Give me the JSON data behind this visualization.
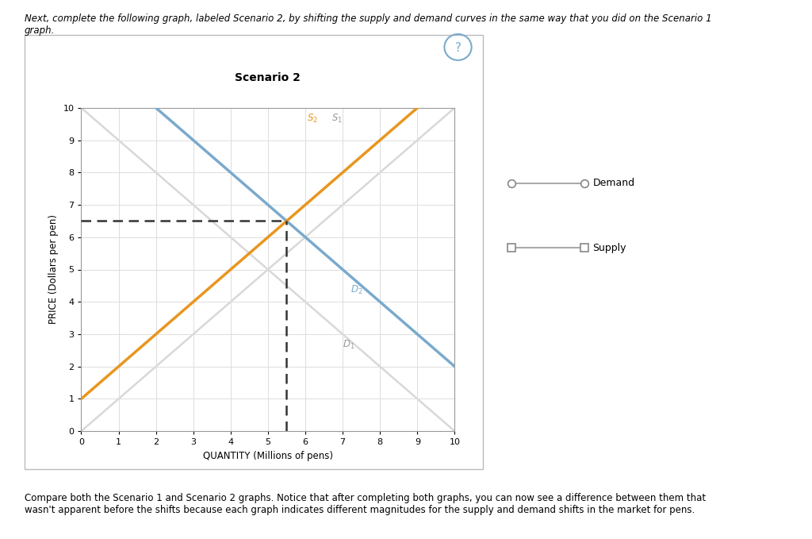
{
  "title": "Scenario 2",
  "xlabel": "QUANTITY (Millions of pens)",
  "ylabel": "PRICE (Dollars per pen)",
  "xlim": [
    0,
    10
  ],
  "ylim": [
    0,
    10
  ],
  "xticks": [
    0,
    1,
    2,
    3,
    4,
    5,
    6,
    7,
    8,
    9,
    10
  ],
  "yticks": [
    0,
    1,
    2,
    3,
    4,
    5,
    6,
    7,
    8,
    9,
    10
  ],
  "header_text": "Next, complete the following graph, labeled Scenario 2, by shifting the supply and demand curves in the same way that you did on the Scenario 1\ngraph.",
  "footer_text": "Compare both the Scenario 1 and Scenario 2 graphs. Notice that after completing both graphs, you can now see a difference between them that\nwasn't apparent before the shifts because each graph indicates different magnitudes for the supply and demand shifts in the market for pens.",
  "ghost_color": "#d8d8d8",
  "D2_color": "#7aaacc",
  "S2_color": "#e8961e",
  "dash_color": "#333333",
  "equilibrium_x": 5.5,
  "equilibrium_y": 6.5,
  "legend_line_color": "#aaaaaa",
  "qmark_color": "#7aaacc"
}
